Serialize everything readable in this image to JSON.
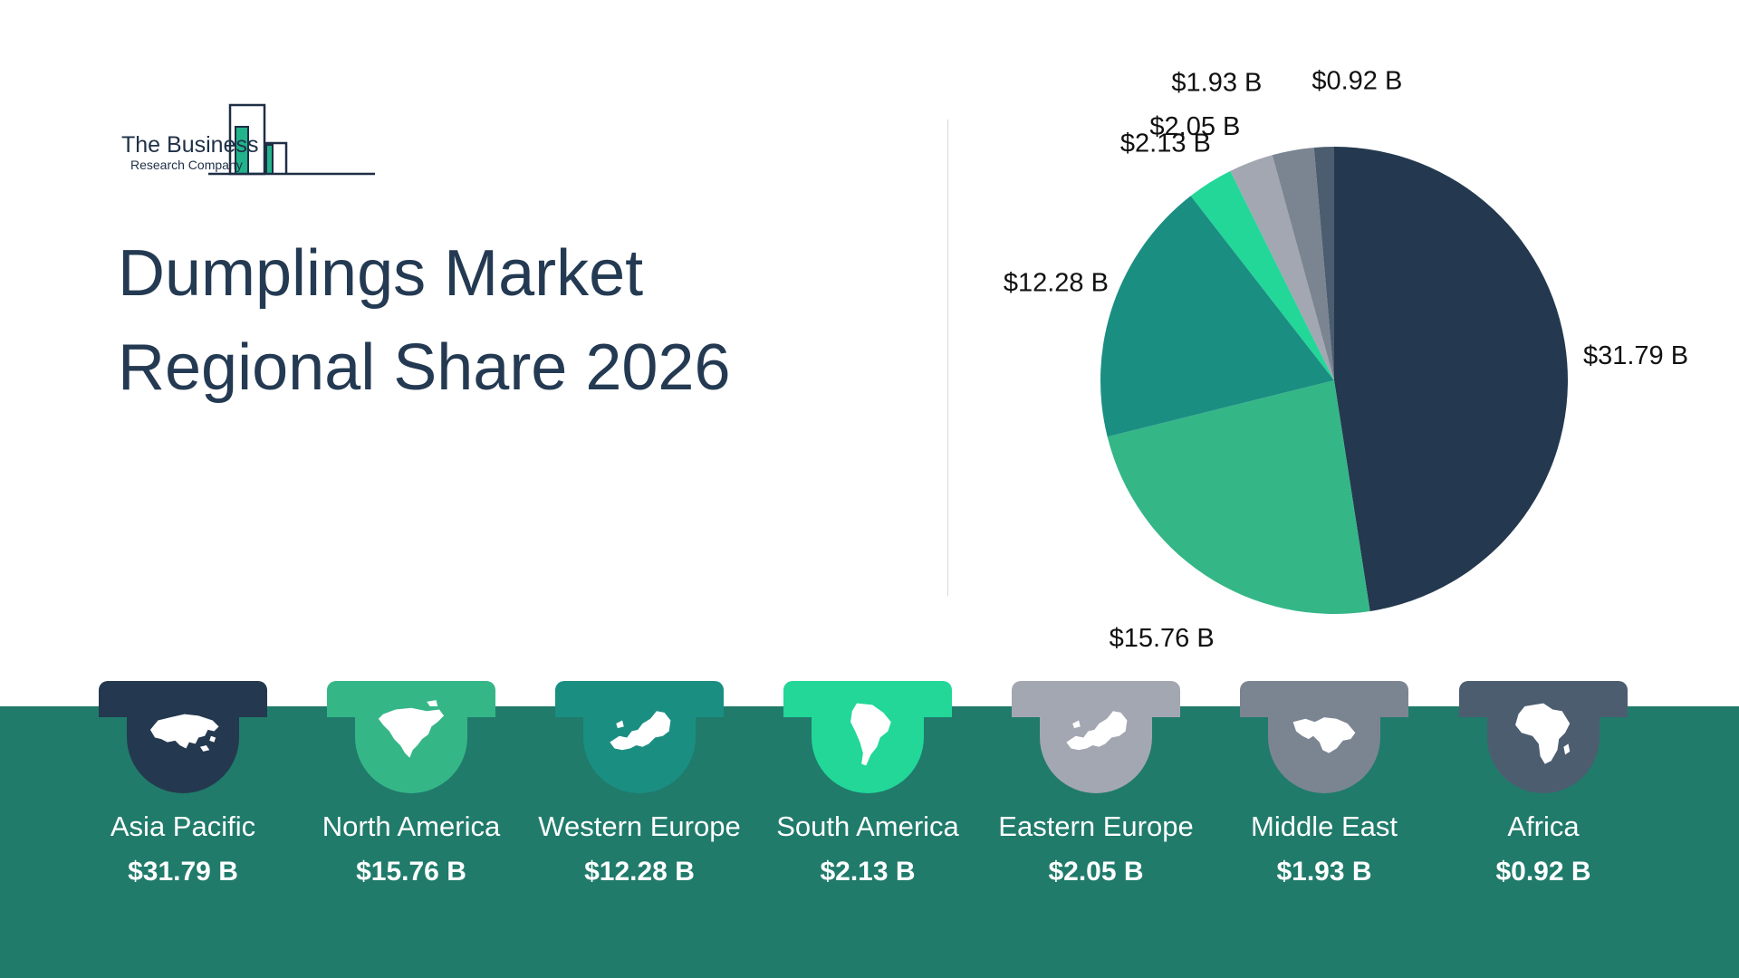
{
  "logo": {
    "line1": "The Business",
    "line2": "Research Company",
    "icon": "building-chart-icon"
  },
  "title_lines": [
    "Dumplings Market",
    "Regional Share 2026"
  ],
  "chart_data": {
    "type": "pie",
    "title": "Dumplings Market Regional Share 2026",
    "categories": [
      "Asia Pacific",
      "North America",
      "Western Europe",
      "South America",
      "Eastern Europe",
      "Middle East",
      "Africa"
    ],
    "values": [
      31.79,
      15.76,
      12.28,
      2.13,
      2.05,
      1.93,
      0.92
    ],
    "labels": [
      "$31.79 B",
      "$15.76 B",
      "$12.28 B",
      "$2.13 B",
      "$2.05 B",
      "$1.93 B",
      "$0.92 B"
    ],
    "colors": [
      "#24394f",
      "#35b687",
      "#1b8e82",
      "#22d798",
      "#a3a7b1",
      "#7b8592",
      "#4c5d70"
    ],
    "unit": "$ B"
  },
  "regions": [
    {
      "name": "Asia Pacific",
      "value": "$31.79 B",
      "color": "#24394f",
      "icon": "asia-map-icon"
    },
    {
      "name": "North America",
      "value": "$15.76 B",
      "color": "#35b687",
      "icon": "north-america-map-icon"
    },
    {
      "name": "Western Europe",
      "value": "$12.28 B",
      "color": "#1b8e82",
      "icon": "europe-map-icon"
    },
    {
      "name": "South America",
      "value": "$2.13 B",
      "color": "#22d798",
      "icon": "south-america-map-icon"
    },
    {
      "name": "Eastern Europe",
      "value": "$2.05 B",
      "color": "#a3a7b1",
      "icon": "europe-map-icon"
    },
    {
      "name": "Middle East",
      "value": "$1.93 B",
      "color": "#7b8592",
      "icon": "middle-east-map-icon"
    },
    {
      "name": "Africa",
      "value": "$0.92 B",
      "color": "#4c5d70",
      "icon": "africa-map-icon"
    }
  ]
}
